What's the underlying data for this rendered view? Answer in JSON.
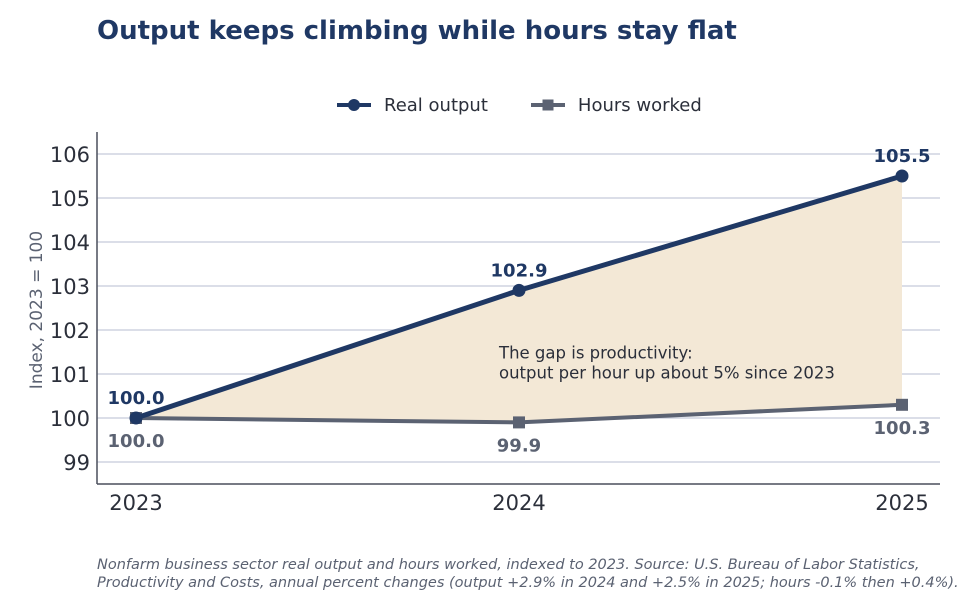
{
  "chart_data": {
    "type": "line",
    "title": "Output keeps climbing while hours stay flat",
    "xlabel": "",
    "ylabel": "Index, 2023 = 100",
    "categories": [
      "2023",
      "2024",
      "2025"
    ],
    "ylim": [
      98.5,
      106.5
    ],
    "yticks": [
      99,
      100,
      101,
      102,
      103,
      104,
      105,
      106
    ],
    "grid": true,
    "legend": "top-center",
    "series": [
      {
        "name": "Real output",
        "values": [
          100.0,
          102.9,
          105.5
        ],
        "labels": [
          "100.0",
          "102.9",
          "105.5"
        ],
        "color": "#1f3864",
        "marker": "circle"
      },
      {
        "name": "Hours worked",
        "values": [
          100.0,
          99.9,
          100.3
        ],
        "labels": [
          "100.0",
          "99.9",
          "100.3"
        ],
        "color": "#5b6272",
        "marker": "square"
      }
    ],
    "fill_between": {
      "color": "#f3e8d6"
    },
    "annotation": {
      "lines": [
        "The gap is productivity:",
        "output per hour up about 5% since 2023"
      ],
      "x": "2024",
      "y": 101.35
    }
  },
  "footnote": {
    "line1": "Nonfarm business sector real output and hours worked, indexed to 2023. Source: U.S. Bureau of Labor Statistics,",
    "line2": "Productivity and Costs, annual percent changes (output +2.9% in 2024 and +2.5% in 2025; hours -0.1% then +0.4%)."
  },
  "colors": {
    "axis": "#4a4f5c",
    "grid": "#c5cad9",
    "tick_text": "#2b2f3a",
    "ylabel_text": "#5b6272"
  }
}
